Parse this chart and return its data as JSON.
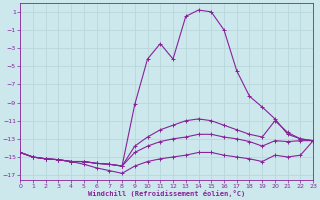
{
  "xlabel": "Windchill (Refroidissement éolien,°C)",
  "background_color": "#cce8ec",
  "grid_color": "#b8d8dc",
  "line_color": "#882299",
  "xlim": [
    0,
    23
  ],
  "ylim": [
    -17.5,
    2.0
  ],
  "xticks": [
    0,
    1,
    2,
    3,
    4,
    5,
    6,
    7,
    8,
    9,
    10,
    11,
    12,
    13,
    14,
    15,
    16,
    17,
    18,
    19,
    20,
    21,
    22,
    23
  ],
  "yticks": [
    1,
    -1,
    -3,
    -5,
    -7,
    -9,
    -11,
    -13,
    -15,
    -17
  ],
  "series": [
    [
      -14.5,
      -15.0,
      -15.2,
      -15.3,
      -15.5,
      -15.5,
      -15.7,
      -15.8,
      -16.0,
      -9.2,
      -4.2,
      -2.5,
      -4.2,
      0.5,
      1.2,
      1.0,
      -1.0,
      -5.5,
      -8.3,
      -9.5,
      -10.8,
      -12.5,
      -13.0,
      -13.2
    ],
    [
      -14.5,
      -15.0,
      -15.2,
      -15.3,
      -15.5,
      -15.5,
      -15.7,
      -15.8,
      -16.0,
      -13.8,
      -12.8,
      -12.0,
      -11.5,
      -11.0,
      -10.8,
      -11.0,
      -11.5,
      -12.0,
      -12.5,
      -12.8,
      -11.0,
      -12.3,
      -13.0,
      -13.2
    ],
    [
      -14.5,
      -15.0,
      -15.2,
      -15.3,
      -15.5,
      -15.5,
      -15.7,
      -15.8,
      -16.0,
      -14.5,
      -13.8,
      -13.3,
      -13.0,
      -12.8,
      -12.5,
      -12.5,
      -12.8,
      -13.0,
      -13.3,
      -13.8,
      -13.2,
      -13.3,
      -13.2,
      -13.2
    ],
    [
      -14.5,
      -15.0,
      -15.2,
      -15.3,
      -15.5,
      -15.8,
      -16.2,
      -16.5,
      -16.8,
      -16.0,
      -15.5,
      -15.2,
      -15.0,
      -14.8,
      -14.5,
      -14.5,
      -14.8,
      -15.0,
      -15.2,
      -15.5,
      -14.8,
      -15.0,
      -14.8,
      -13.2
    ]
  ]
}
